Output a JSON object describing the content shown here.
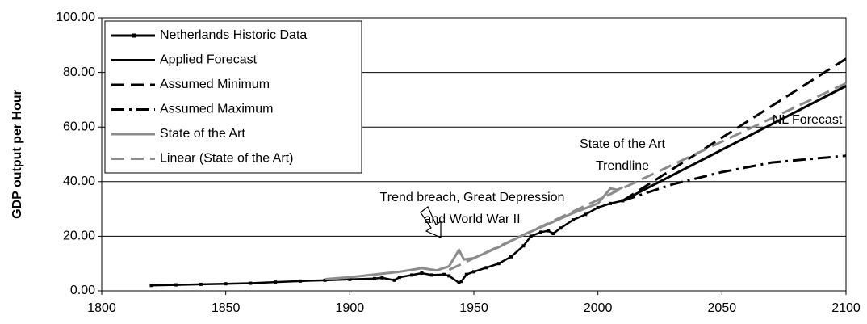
{
  "chart_data": {
    "type": "line",
    "y_label": "GDP output per Hour",
    "xlim": [
      1800,
      2100
    ],
    "xticks": [
      1800,
      1850,
      1900,
      1950,
      2000,
      2050,
      2100
    ],
    "ylim": [
      0,
      100
    ],
    "yticks": [
      {
        "value": 0,
        "label": "0.00"
      },
      {
        "value": 20,
        "label": "20.00"
      },
      {
        "value": 40,
        "label": "40.00"
      },
      {
        "value": 60,
        "label": "60.00"
      },
      {
        "value": 80,
        "label": "80.00"
      },
      {
        "value": 100,
        "label": "100.00"
      }
    ],
    "grid": true,
    "legend": "top-left",
    "series": [
      {
        "name": "Netherlands Historic Data",
        "color": "#000000",
        "style": "solid",
        "marker": "square",
        "x": [
          1820,
          1830,
          1840,
          1850,
          1860,
          1870,
          1880,
          1890,
          1900,
          1910,
          1913,
          1918,
          1920,
          1925,
          1929,
          1933,
          1938,
          1940,
          1944,
          1945,
          1947,
          1950,
          1955,
          1960,
          1965,
          1970,
          1973,
          1977,
          1980,
          1982,
          1985,
          1990,
          1995,
          2000,
          2005,
          2010
        ],
        "values": [
          2.0,
          2.2,
          2.4,
          2.6,
          2.8,
          3.2,
          3.6,
          3.9,
          4.2,
          4.5,
          4.8,
          3.9,
          5.0,
          5.8,
          6.5,
          5.8,
          6.0,
          5.5,
          3.0,
          3.5,
          6.0,
          7.0,
          8.5,
          10.0,
          12.5,
          16.5,
          20.0,
          21.5,
          22.0,
          21.0,
          23.0,
          26.0,
          28.0,
          30.5,
          32.0,
          33.0
        ]
      },
      {
        "name": "Applied Forecast",
        "color": "#000000",
        "style": "solid",
        "x": [
          2010,
          2100
        ],
        "values": [
          33,
          75
        ]
      },
      {
        "name": "Assumed Minimum",
        "color": "#000000",
        "style": "dash",
        "x": [
          2010,
          2100
        ],
        "values": [
          33,
          85
        ]
      },
      {
        "name": "Assumed Maximum",
        "color": "#000000",
        "style": "dashdot",
        "x": [
          2010,
          2030,
          2050,
          2070,
          2100
        ],
        "values": [
          33,
          39,
          43.5,
          47,
          49.5
        ]
      },
      {
        "name": "State of the Art",
        "color": "#8c8c8c",
        "style": "solid",
        "x": [
          1890,
          1900,
          1910,
          1920,
          1929,
          1935,
          1940,
          1944,
          1946,
          1950,
          1960,
          1970,
          1980,
          1990,
          2000,
          2005,
          2008,
          2010
        ],
        "values": [
          4.3,
          5.0,
          6.0,
          7.0,
          8.3,
          7.5,
          9.0,
          15.0,
          11.5,
          12.0,
          16.0,
          20.5,
          24.5,
          28.5,
          32.0,
          37.5,
          37.0,
          38.0
        ]
      },
      {
        "name": "Linear (State of the Art)",
        "color": "#8c8c8c",
        "style": "dash",
        "x": [
          1940,
          2100
        ],
        "values": [
          7.7,
          76
        ]
      }
    ],
    "annotations": [
      {
        "lines": [
          "Trend breach, Great Depression",
          "and World War II"
        ]
      },
      {
        "lines": [
          "State of the Art",
          "Trendline"
        ]
      },
      {
        "lines": [
          "NL Forecast"
        ]
      }
    ]
  }
}
